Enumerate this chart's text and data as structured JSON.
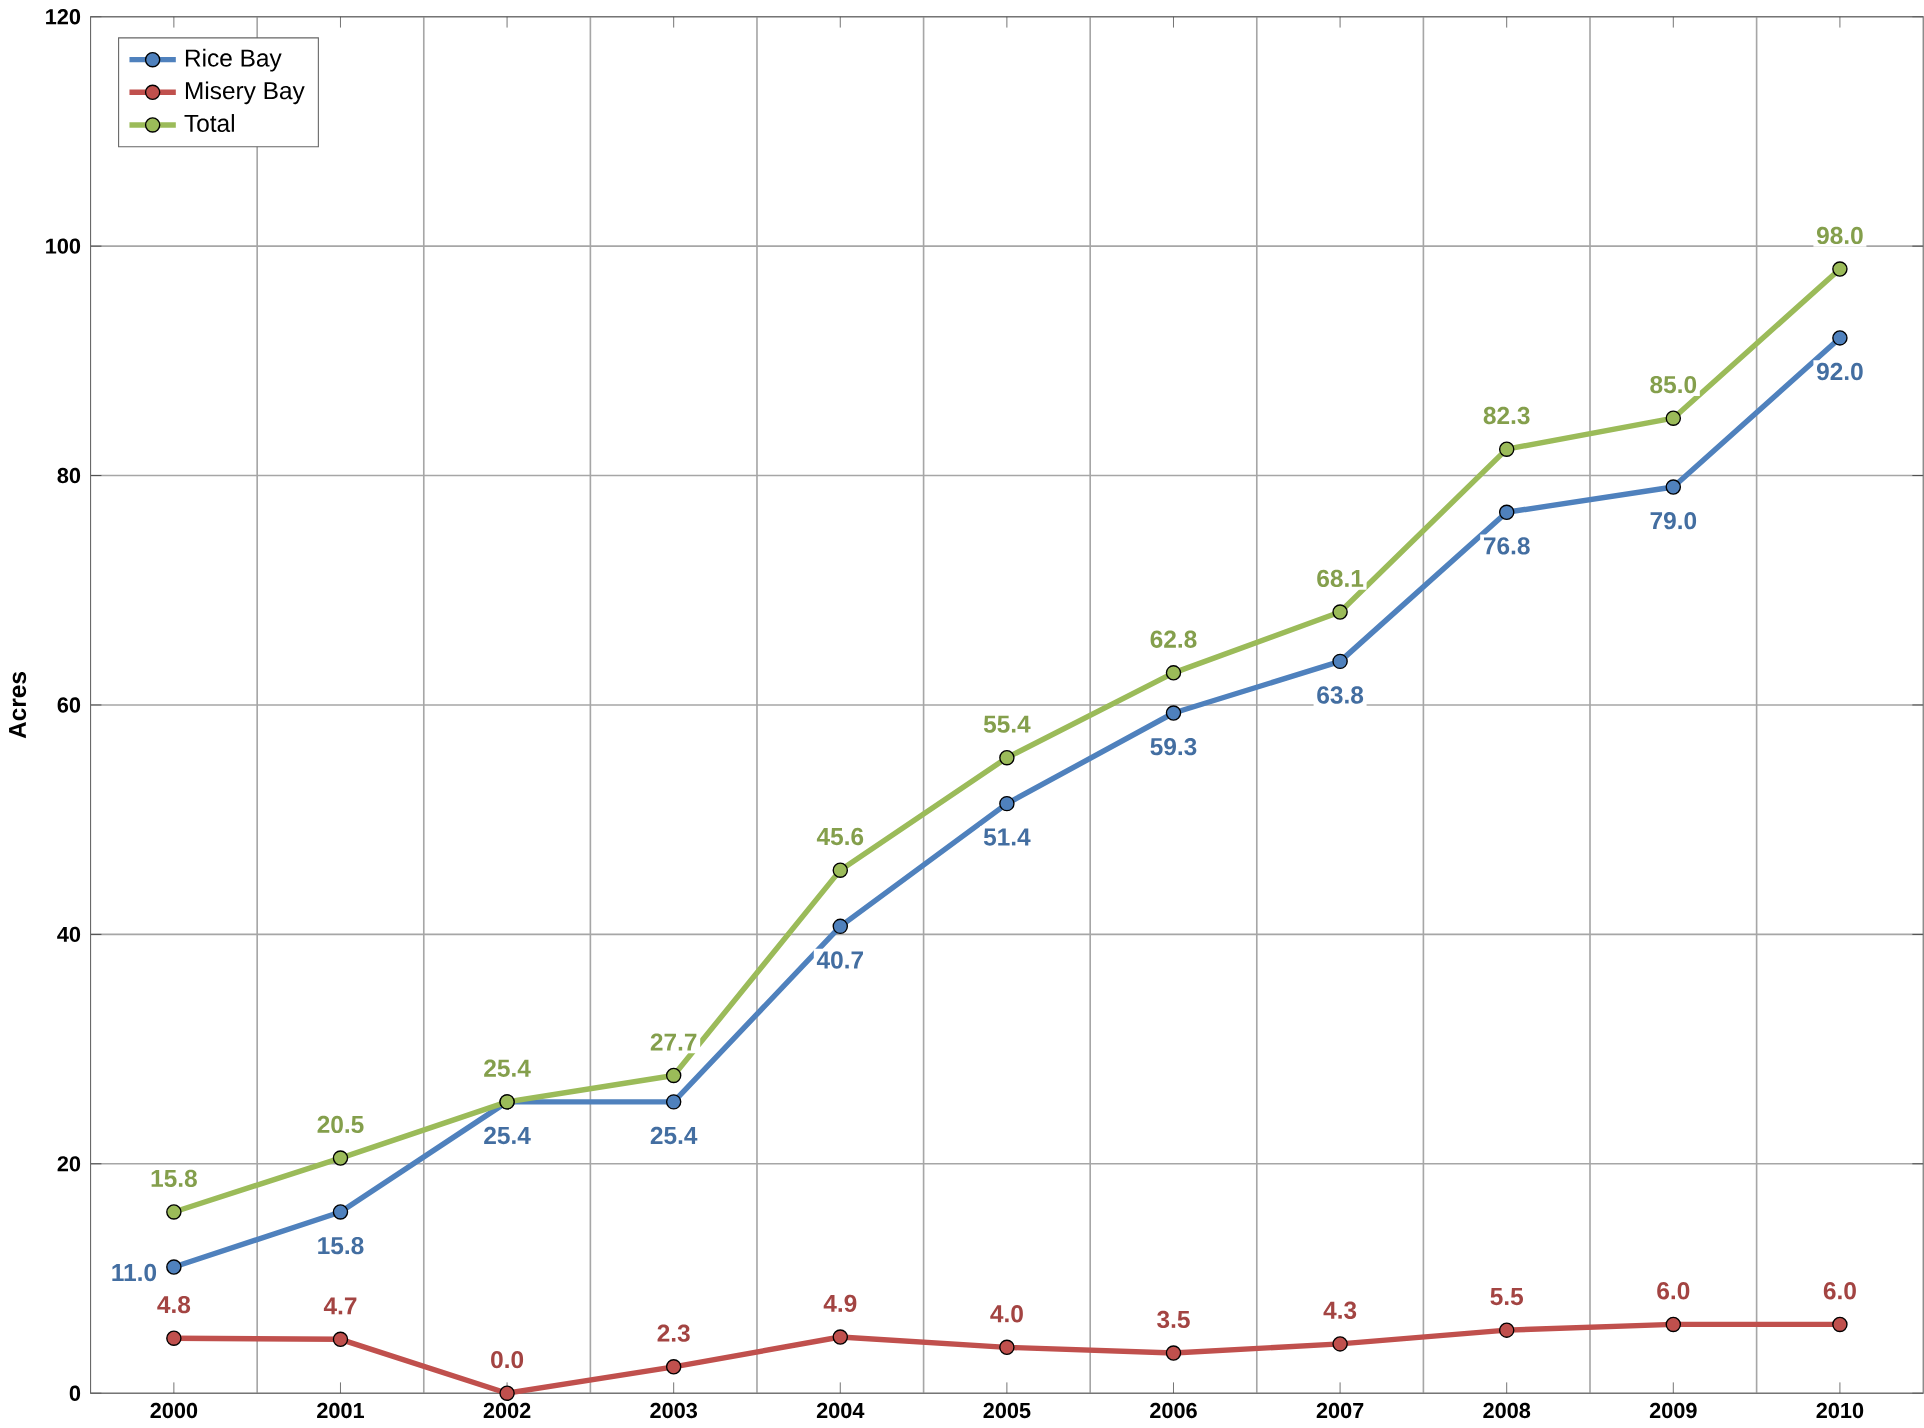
{
  "chart_data": {
    "type": "line",
    "ylabel": "Acres",
    "categories": [
      "2000",
      "2001",
      "2002",
      "2003",
      "2004",
      "2005",
      "2006",
      "2007",
      "2008",
      "2009",
      "2010"
    ],
    "series": [
      {
        "name": "Rice Bay",
        "color": "#4f81bd",
        "values": [
          11.0,
          15.8,
          25.4,
          25.4,
          40.7,
          51.4,
          59.3,
          63.8,
          76.8,
          79.0,
          92.0
        ],
        "value_labels": [
          "11.0",
          "15.8",
          "25.4",
          "25.4",
          "40.7",
          "51.4",
          "59.3",
          "63.8",
          "76.8",
          "79.0",
          "92.0"
        ]
      },
      {
        "name": "Misery Bay",
        "color": "#c0504d",
        "values": [
          4.8,
          4.7,
          0.0,
          2.3,
          4.9,
          4.0,
          3.5,
          4.3,
          5.5,
          6.0,
          6.0
        ],
        "value_labels": [
          "4.8",
          "4.7",
          "0.0",
          "2.3",
          "4.9",
          "4.0",
          "3.5",
          "4.3",
          "5.5",
          "6.0",
          "6.0"
        ]
      },
      {
        "name": "Total",
        "color": "#9bbb59",
        "values": [
          15.8,
          20.5,
          25.4,
          27.7,
          45.6,
          55.4,
          62.8,
          68.1,
          82.3,
          85.0,
          98.0
        ],
        "value_labels": [
          "15.8",
          "20.5",
          "25.4",
          "27.7",
          "45.6",
          "55.4",
          "62.8",
          "68.1",
          "82.3",
          "85.0",
          "98.0"
        ]
      }
    ],
    "ylim": [
      0,
      120
    ],
    "yticks": [
      0,
      20,
      40,
      60,
      80,
      100,
      120
    ],
    "grid": true,
    "legend": "top left",
    "marker": "circle",
    "line_style": "solid"
  }
}
